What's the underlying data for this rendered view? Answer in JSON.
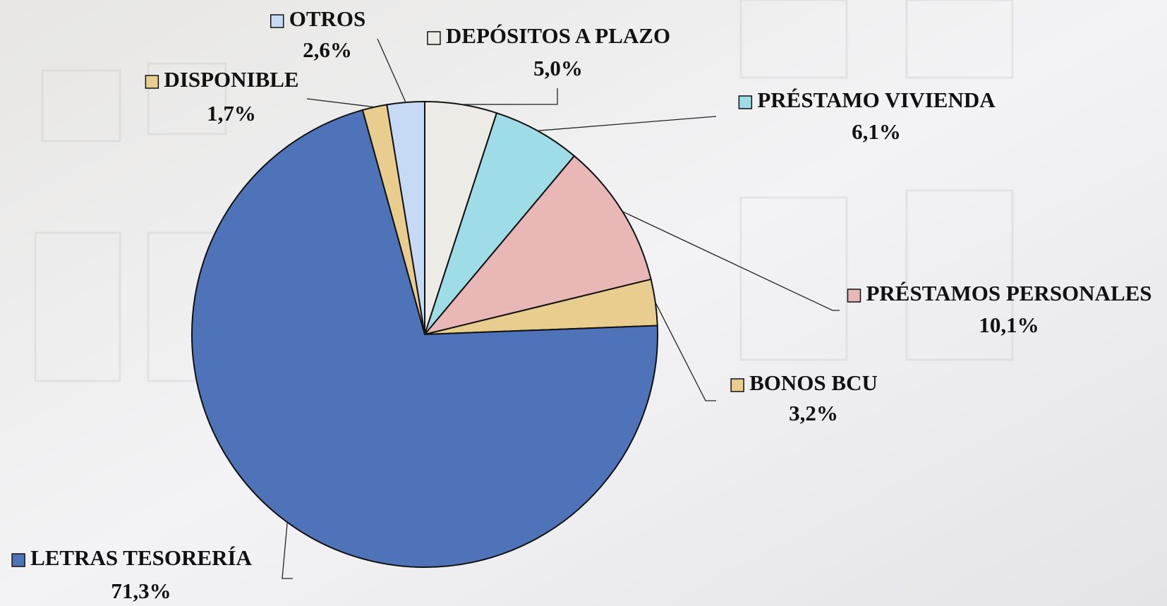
{
  "chart_data": {
    "type": "pie",
    "categories": [
      "DEPÓSITOS A PLAZO",
      "PRÉSTAMO VIVIENDA",
      "PRÉSTAMOS PERSONALES",
      "BONOS BCU",
      "LETRAS TESORERÍA",
      "DISPONIBLE",
      "OTROS"
    ],
    "values": [
      5.0,
      6.1,
      10.1,
      3.2,
      71.3,
      1.7,
      2.6
    ],
    "value_labels": [
      "5,0%",
      "6,1%",
      "10,1%",
      "3,2%",
      "71,3%",
      "1,7%",
      "2,6%"
    ],
    "colors": [
      "#ecebe6",
      "#9edce8",
      "#e9b8b6",
      "#e9cd8e",
      "#4f73b8",
      "#e9cd8e",
      "#c6d9f5"
    ]
  }
}
